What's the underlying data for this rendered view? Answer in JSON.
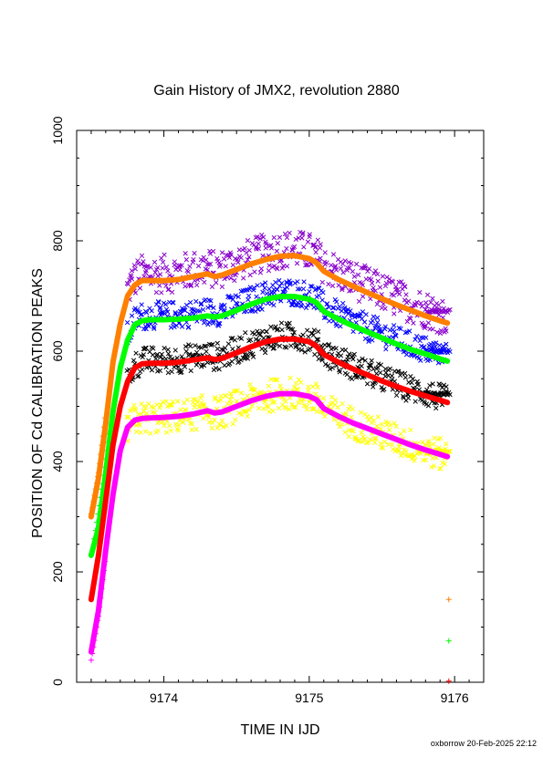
{
  "chart_data": {
    "type": "scatter",
    "title": "Gain History of JMX2, revolution 2880",
    "xlabel": "TIME IN IJD",
    "ylabel": "POSITION OF Cd CALIBRATION PEAKS",
    "xlim": [
      9173.4,
      9176.2
    ],
    "ylim": [
      0,
      1000
    ],
    "x_ticks": [
      9174,
      9175,
      9176
    ],
    "x_tick_labels": [
      "9174",
      "9175",
      "9176"
    ],
    "y_ticks": [
      0,
      200,
      400,
      600,
      800,
      1000
    ],
    "y_tick_labels": [
      "0",
      "200",
      "400",
      "600",
      "800",
      "1000"
    ],
    "grid": false,
    "footer": "oxborrow 20-Feb-2025 22:12",
    "series": [
      {
        "kind": "fit",
        "color": "#ff8000",
        "points": [
          [
            9173.5,
            300
          ],
          [
            9173.55,
            370
          ],
          [
            9173.6,
            470
          ],
          [
            9173.65,
            580
          ],
          [
            9173.7,
            650
          ],
          [
            9173.75,
            700
          ],
          [
            9173.8,
            720
          ],
          [
            9173.85,
            728
          ],
          [
            9173.9,
            728
          ],
          [
            9174.0,
            728
          ],
          [
            9174.1,
            730
          ],
          [
            9174.2,
            735
          ],
          [
            9174.3,
            740
          ],
          [
            9174.35,
            735
          ],
          [
            9174.4,
            738
          ],
          [
            9174.5,
            748
          ],
          [
            9174.6,
            758
          ],
          [
            9174.7,
            766
          ],
          [
            9174.8,
            772
          ],
          [
            9174.9,
            773
          ],
          [
            9175.0,
            768
          ],
          [
            9175.05,
            760
          ],
          [
            9175.1,
            745
          ],
          [
            9175.2,
            730
          ],
          [
            9175.3,
            718
          ],
          [
            9175.4,
            706
          ],
          [
            9175.5,
            695
          ],
          [
            9175.6,
            684
          ],
          [
            9175.7,
            674
          ],
          [
            9175.8,
            664
          ],
          [
            9175.9,
            655
          ],
          [
            9175.95,
            651
          ]
        ]
      },
      {
        "kind": "fit",
        "color": "#00ff00",
        "points": [
          [
            9173.5,
            230
          ],
          [
            9173.55,
            280
          ],
          [
            9173.6,
            380
          ],
          [
            9173.65,
            490
          ],
          [
            9173.7,
            570
          ],
          [
            9173.75,
            620
          ],
          [
            9173.8,
            648
          ],
          [
            9173.85,
            655
          ],
          [
            9173.9,
            657
          ],
          [
            9174.0,
            657
          ],
          [
            9174.1,
            658
          ],
          [
            9174.2,
            660
          ],
          [
            9174.3,
            664
          ],
          [
            9174.35,
            662
          ],
          [
            9174.4,
            664
          ],
          [
            9174.5,
            674
          ],
          [
            9174.6,
            685
          ],
          [
            9174.7,
            694
          ],
          [
            9174.8,
            699
          ],
          [
            9174.9,
            699
          ],
          [
            9175.0,
            694
          ],
          [
            9175.05,
            688
          ],
          [
            9175.1,
            672
          ],
          [
            9175.2,
            658
          ],
          [
            9175.3,
            646
          ],
          [
            9175.4,
            635
          ],
          [
            9175.5,
            624
          ],
          [
            9175.6,
            613
          ],
          [
            9175.7,
            603
          ],
          [
            9175.8,
            595
          ],
          [
            9175.9,
            586
          ],
          [
            9175.95,
            582
          ]
        ]
      },
      {
        "kind": "fit",
        "color": "#ff0000",
        "points": [
          [
            9173.5,
            150
          ],
          [
            9173.55,
            230
          ],
          [
            9173.6,
            330
          ],
          [
            9173.65,
            430
          ],
          [
            9173.7,
            500
          ],
          [
            9173.75,
            545
          ],
          [
            9173.8,
            570
          ],
          [
            9173.85,
            577
          ],
          [
            9173.9,
            578
          ],
          [
            9174.0,
            578
          ],
          [
            9174.1,
            580
          ],
          [
            9174.2,
            584
          ],
          [
            9174.3,
            588
          ],
          [
            9174.35,
            585
          ],
          [
            9174.4,
            587
          ],
          [
            9174.5,
            597
          ],
          [
            9174.6,
            608
          ],
          [
            9174.7,
            617
          ],
          [
            9174.8,
            622
          ],
          [
            9174.9,
            622
          ],
          [
            9175.0,
            617
          ],
          [
            9175.05,
            609
          ],
          [
            9175.1,
            594
          ],
          [
            9175.2,
            580
          ],
          [
            9175.3,
            568
          ],
          [
            9175.4,
            557
          ],
          [
            9175.5,
            546
          ],
          [
            9175.6,
            536
          ],
          [
            9175.7,
            527
          ],
          [
            9175.8,
            519
          ],
          [
            9175.9,
            511
          ],
          [
            9175.95,
            507
          ]
        ]
      },
      {
        "kind": "fit",
        "color": "#ff00ff",
        "points": [
          [
            9173.5,
            55
          ],
          [
            9173.55,
            130
          ],
          [
            9173.6,
            240
          ],
          [
            9173.65,
            340
          ],
          [
            9173.7,
            420
          ],
          [
            9173.75,
            462
          ],
          [
            9173.8,
            475
          ],
          [
            9173.85,
            478
          ],
          [
            9173.9,
            479
          ],
          [
            9174.0,
            480
          ],
          [
            9174.1,
            482
          ],
          [
            9174.2,
            486
          ],
          [
            9174.3,
            492
          ],
          [
            9174.35,
            488
          ],
          [
            9174.4,
            490
          ],
          [
            9174.5,
            500
          ],
          [
            9174.6,
            510
          ],
          [
            9174.7,
            518
          ],
          [
            9174.8,
            523
          ],
          [
            9174.9,
            523
          ],
          [
            9175.0,
            518
          ],
          [
            9175.05,
            512
          ],
          [
            9175.1,
            496
          ],
          [
            9175.2,
            482
          ],
          [
            9175.3,
            470
          ],
          [
            9175.4,
            460
          ],
          [
            9175.5,
            450
          ],
          [
            9175.6,
            440
          ],
          [
            9175.7,
            430
          ],
          [
            9175.8,
            421
          ],
          [
            9175.9,
            413
          ],
          [
            9175.95,
            409
          ]
        ]
      }
    ],
    "scatter_series": [
      {
        "color": "#8800cc",
        "marker": "x",
        "spread": 35,
        "offset": 12,
        "gaps": [
          [
            9175.75,
            9175.82
          ]
        ]
      },
      {
        "color": "#0000ff",
        "marker": "x",
        "spread": 25,
        "offset": 8,
        "gaps": []
      },
      {
        "color": "#000000",
        "marker": "x",
        "spread": 25,
        "offset": 5,
        "gaps": []
      },
      {
        "color": "#ffff00",
        "marker": "x",
        "spread": 30,
        "offset": 0,
        "gaps": []
      }
    ],
    "early_markers": [
      {
        "color": "#ff8000",
        "marker": "+",
        "points": [
          [
            9173.5,
            305
          ],
          [
            9173.55,
            380
          ],
          [
            9173.6,
            490
          ]
        ]
      },
      {
        "color": "#00ff00",
        "marker": "+",
        "points": [
          [
            9173.52,
            260
          ],
          [
            9173.58,
            360
          ],
          [
            9173.62,
            460
          ]
        ]
      },
      {
        "color": "#ff00ff",
        "marker": "+",
        "points": [
          [
            9173.5,
            40
          ],
          [
            9173.55,
            120
          ],
          [
            9173.6,
            230
          ]
        ]
      }
    ],
    "outliers": [
      {
        "color": "#ff8000",
        "marker": "+",
        "x": 9175.96,
        "y": 150
      },
      {
        "color": "#00ff00",
        "marker": "+",
        "x": 9175.96,
        "y": 75
      },
      {
        "color": "#ff0000",
        "marker": "+",
        "x": 9175.96,
        "y": 2
      }
    ]
  }
}
